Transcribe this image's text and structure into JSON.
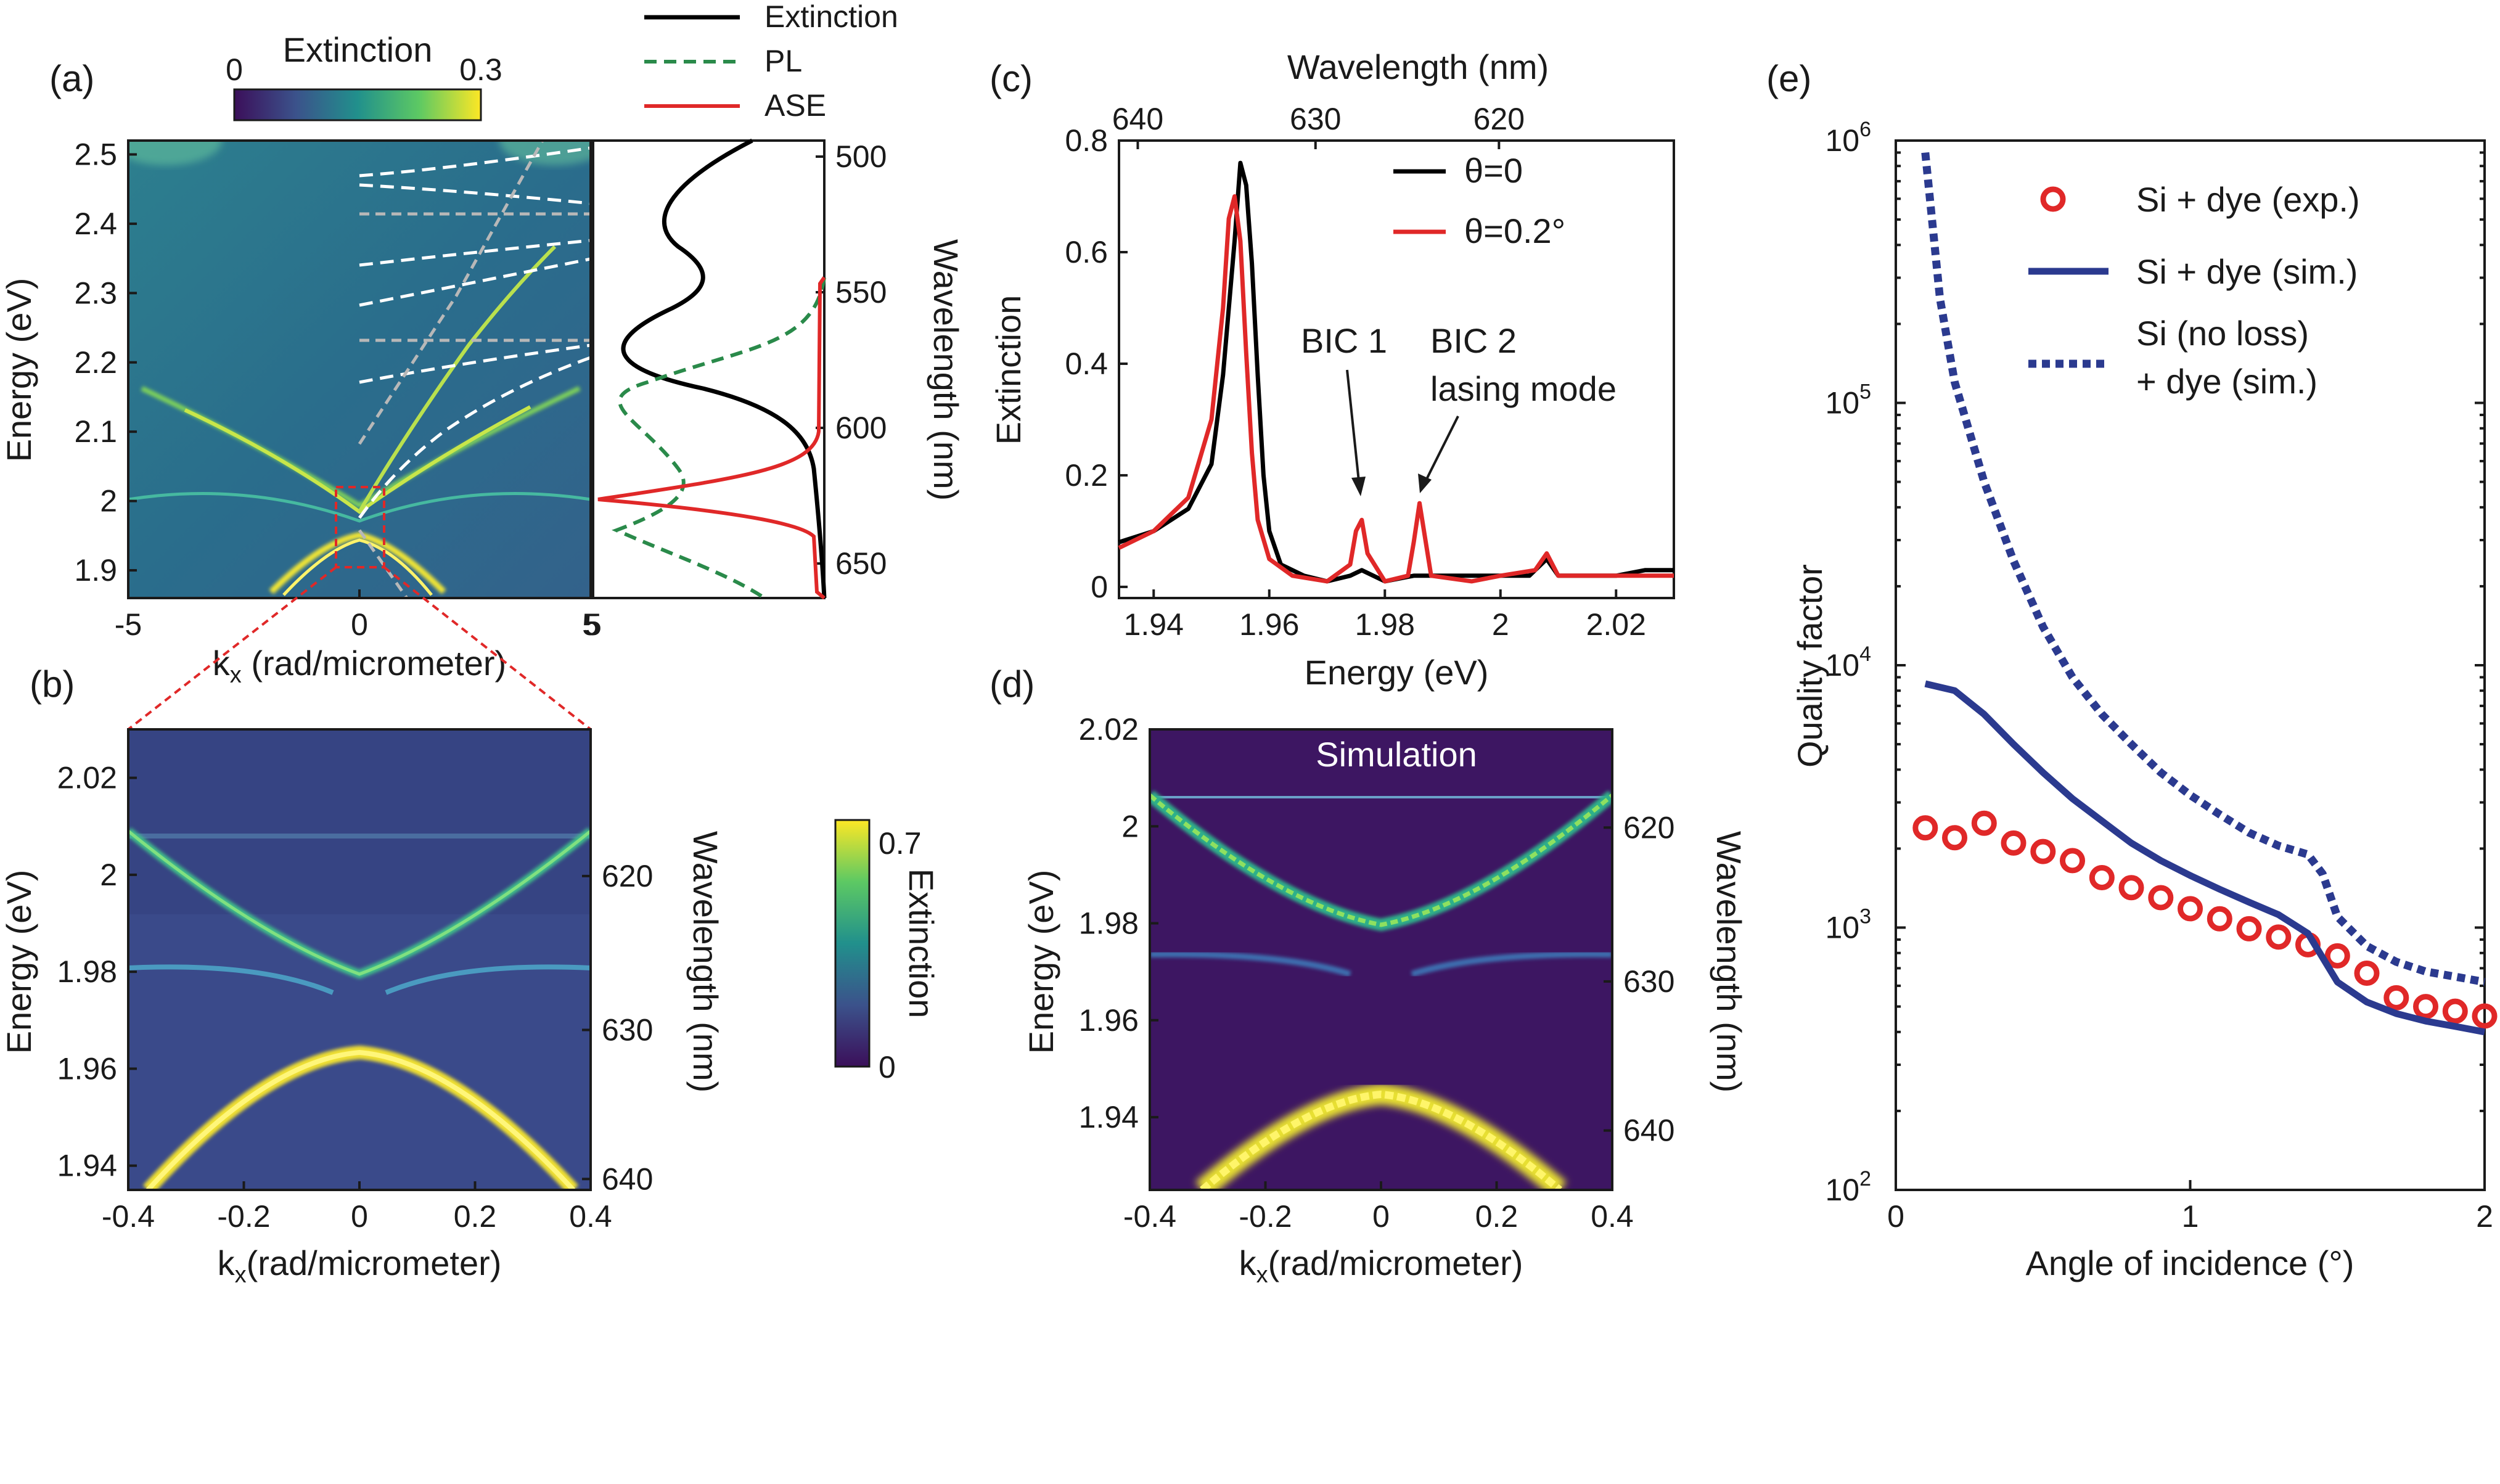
{
  "chart_data": [
    {
      "panel": "(a)",
      "type": "heatmap",
      "xlabel": "k",
      "xlabel_sub": "x",
      "xlabel_rest": " (rad/micrometer)",
      "ylabel": "Energy (eV)",
      "xlim": [
        -5,
        5
      ],
      "ylim": [
        1.86,
        2.52
      ],
      "xticks": [
        "-5",
        "0",
        "5"
      ],
      "yticks": [
        "1.9",
        "2",
        "2.1",
        "2.2",
        "2.3",
        "2.4",
        "2.5"
      ],
      "colorbar": {
        "label": "Extinction",
        "min_label": "0",
        "max_label": "0.3",
        "range": [
          0,
          0.3
        ]
      }
    },
    {
      "panel": "(a) side",
      "type": "line",
      "ylabel": "Wavelength (nm)",
      "yticks": [
        "500",
        "550",
        "600",
        "650"
      ],
      "series": [
        {
          "name": "Extinction",
          "color": "#000000",
          "style": "solid"
        },
        {
          "name": "PL",
          "color": "#2a8a4a",
          "style": "dashed"
        },
        {
          "name": "ASE",
          "color": "#e02828",
          "style": "solid"
        }
      ]
    },
    {
      "panel": "(b)",
      "type": "heatmap",
      "xlabel": "k",
      "xlabel_sub": "x",
      "xlabel_rest": "(rad/micrometer)",
      "ylabel": "Energy (eV)",
      "ylabel_right": "Wavelength (nm)",
      "xlim": [
        -0.4,
        0.4
      ],
      "ylim": [
        1.935,
        2.03
      ],
      "xticks": [
        "-0.4",
        "-0.2",
        "0",
        "0.2",
        "0.4"
      ],
      "yticks": [
        "1.94",
        "1.96",
        "1.98",
        "2",
        "2.02"
      ],
      "yticks_right": [
        "620",
        "630",
        "640"
      ],
      "colorbar": {
        "label": "Extinction",
        "min_label": "0",
        "max_label": "0.7",
        "range": [
          0,
          0.7
        ]
      }
    },
    {
      "panel": "(c)",
      "type": "line",
      "title_top": "Wavelength (nm)",
      "xlabel": "Energy (eV)",
      "ylabel": "Extinction",
      "xlim": [
        1.934,
        2.03
      ],
      "ylim": [
        -0.02,
        0.8
      ],
      "xticks": [
        "1.94",
        "1.96",
        "1.98",
        "2",
        "2.02"
      ],
      "yticks": [
        "0",
        "0.2",
        "0.4",
        "0.6",
        "0.8"
      ],
      "xticks_top": [
        "640",
        "630",
        "620"
      ],
      "series": [
        {
          "name": "θ=0",
          "color": "#000000",
          "x": [
            1.934,
            1.94,
            1.946,
            1.95,
            1.952,
            1.954,
            1.955,
            1.956,
            1.957,
            1.958,
            1.959,
            1.96,
            1.962,
            1.966,
            1.97,
            1.974,
            1.976,
            1.978,
            1.98,
            1.985,
            1.99,
            1.995,
            2.0,
            2.005,
            2.008,
            2.01,
            2.015,
            2.02,
            2.025,
            2.03
          ],
          "y": [
            0.08,
            0.1,
            0.14,
            0.22,
            0.38,
            0.62,
            0.76,
            0.72,
            0.58,
            0.38,
            0.2,
            0.1,
            0.04,
            0.02,
            0.01,
            0.02,
            0.03,
            0.02,
            0.01,
            0.02,
            0.02,
            0.02,
            0.02,
            0.02,
            0.05,
            0.02,
            0.02,
            0.02,
            0.03,
            0.03
          ]
        },
        {
          "name": "θ=0.2°",
          "color": "#e02828",
          "x": [
            1.934,
            1.94,
            1.946,
            1.95,
            1.952,
            1.953,
            1.954,
            1.955,
            1.956,
            1.957,
            1.958,
            1.96,
            1.964,
            1.97,
            1.974,
            1.975,
            1.976,
            1.977,
            1.98,
            1.984,
            1.985,
            1.986,
            1.988,
            1.995,
            2.0,
            2.006,
            2.008,
            2.01,
            2.02,
            2.03
          ],
          "y": [
            0.07,
            0.1,
            0.16,
            0.3,
            0.5,
            0.66,
            0.7,
            0.62,
            0.42,
            0.24,
            0.12,
            0.05,
            0.02,
            0.01,
            0.04,
            0.1,
            0.12,
            0.06,
            0.01,
            0.02,
            0.08,
            0.15,
            0.02,
            0.01,
            0.02,
            0.03,
            0.06,
            0.02,
            0.02,
            0.02
          ]
        }
      ],
      "annotations": [
        {
          "text": "BIC 1"
        },
        {
          "text": "BIC 2"
        },
        {
          "text": "lasing mode"
        }
      ]
    },
    {
      "panel": "(d)",
      "type": "heatmap",
      "title": "Simulation",
      "xlabel": "k",
      "xlabel_sub": "x",
      "xlabel_rest": "(rad/micrometer)",
      "ylabel": "Energy (eV)",
      "ylabel_right": "Wavelength (nm)",
      "xlim": [
        -0.4,
        0.4
      ],
      "ylim": [
        1.925,
        2.02
      ],
      "xticks": [
        "-0.4",
        "-0.2",
        "0",
        "0.2",
        "0.4"
      ],
      "yticks": [
        "1.94",
        "1.96",
        "1.98",
        "2",
        "2.02"
      ],
      "yticks_right": [
        "620",
        "630",
        "640"
      ]
    },
    {
      "panel": "(e)",
      "type": "line",
      "xlabel": "Angle of incidence (°)",
      "ylabel": "Quality factor",
      "xlim": [
        0,
        2
      ],
      "ylim_log10": [
        2,
        6
      ],
      "yscale": "log",
      "xticks": [
        "0",
        "1",
        "2"
      ],
      "yticks": [
        "10",
        "10",
        "10",
        "10",
        "10"
      ],
      "yticks_exp": [
        "2",
        "3",
        "4",
        "5",
        "6"
      ],
      "series": [
        {
          "name": "Si + dye (exp.)",
          "style": "markers",
          "color": "#e02828",
          "x": [
            0.1,
            0.2,
            0.3,
            0.4,
            0.5,
            0.6,
            0.7,
            0.8,
            0.9,
            1.0,
            1.1,
            1.2,
            1.3,
            1.4,
            1.5,
            1.6,
            1.7,
            1.8,
            1.9,
            2.0
          ],
          "y": [
            2400,
            2200,
            2500,
            2100,
            1950,
            1800,
            1550,
            1420,
            1300,
            1180,
            1080,
            990,
            920,
            860,
            780,
            670,
            540,
            500,
            480,
            460
          ]
        },
        {
          "name": "Si + dye (sim.)",
          "style": "solid",
          "color": "#2b3a8f",
          "x": [
            0.1,
            0.2,
            0.3,
            0.4,
            0.5,
            0.6,
            0.7,
            0.8,
            0.9,
            1.0,
            1.1,
            1.2,
            1.3,
            1.4,
            1.5,
            1.6,
            1.7,
            1.8,
            1.9,
            2.0
          ],
          "y": [
            8500,
            8000,
            6500,
            5000,
            3900,
            3100,
            2550,
            2100,
            1800,
            1580,
            1400,
            1250,
            1120,
            950,
            620,
            520,
            470,
            440,
            420,
            400
          ]
        },
        {
          "name": "Si (no loss)",
          "name2": "+ dye (sim.)",
          "style": "dotted",
          "color": "#2b3a8f",
          "x": [
            0.1,
            0.15,
            0.2,
            0.3,
            0.4,
            0.5,
            0.6,
            0.7,
            0.8,
            0.9,
            1.0,
            1.1,
            1.2,
            1.3,
            1.4,
            1.45,
            1.5,
            1.6,
            1.7,
            1.8,
            1.9,
            2.0
          ],
          "y": [
            900000,
            250000,
            120000,
            50000,
            25000,
            14000,
            9000,
            6500,
            5000,
            3900,
            3200,
            2700,
            2300,
            2050,
            1900,
            1600,
            1100,
            850,
            740,
            680,
            650,
            620
          ]
        }
      ]
    }
  ],
  "panel_labels": [
    "(a)",
    "(b)",
    "(c)",
    "(d)",
    "(e)"
  ]
}
